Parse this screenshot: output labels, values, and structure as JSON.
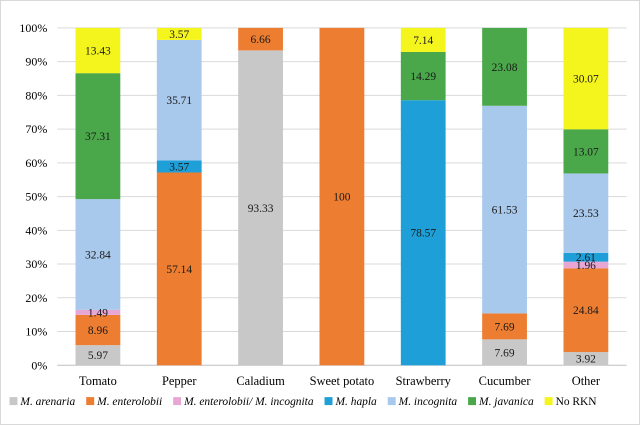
{
  "chart_data": {
    "type": "bar",
    "stacked": true,
    "percent": true,
    "title": "",
    "xlabel": "",
    "ylabel": "",
    "ylim": [
      0,
      100
    ],
    "y_ticks": [
      "0%",
      "10%",
      "20%",
      "30%",
      "40%",
      "50%",
      "60%",
      "70%",
      "80%",
      "90%",
      "100%"
    ],
    "categories": [
      "Tomato",
      "Pepper",
      "Caladium",
      "Sweet potato",
      "Strawberry",
      "Cucumber",
      "Other"
    ],
    "legend_position": "bottom",
    "grid": true,
    "series": [
      {
        "name": "M. arenaria",
        "color": "#c8c8c8",
        "values": [
          5.97,
          0,
          93.33,
          0,
          0,
          7.69,
          3.92
        ],
        "labels": [
          "5.97",
          "",
          "93.33",
          "",
          "",
          "7.69",
          "3.92"
        ]
      },
      {
        "name": "M. enterolobii",
        "color": "#ed7d31",
        "values": [
          8.96,
          57.14,
          6.66,
          100,
          0,
          7.69,
          24.84
        ],
        "labels": [
          "8.96",
          "57.14",
          "6.66",
          "100",
          "",
          "7.69",
          "24.84"
        ]
      },
      {
        "name": "M. enterolobii/ M. incognita",
        "color": "#e8a6d4",
        "values": [
          1.49,
          0,
          0,
          0,
          0,
          0,
          1.96
        ],
        "labels": [
          "1.49",
          "",
          "",
          "",
          "",
          "",
          "1.96"
        ]
      },
      {
        "name": "M. hapla",
        "color": "#1e9fd8",
        "values": [
          0,
          3.57,
          0,
          0,
          78.57,
          0,
          2.61
        ],
        "labels": [
          "",
          "3.57",
          "",
          "",
          "78.57",
          "",
          "2.61"
        ]
      },
      {
        "name": "M. incognita",
        "color": "#a9c9ec",
        "values": [
          32.84,
          35.71,
          0,
          0,
          0,
          61.53,
          23.53
        ],
        "labels": [
          "32.84",
          "35.71",
          "",
          "",
          "",
          "61.53",
          "23.53"
        ]
      },
      {
        "name": "M. javanica",
        "color": "#4aa84a",
        "values": [
          37.31,
          0,
          0,
          0,
          14.29,
          23.08,
          13.07
        ],
        "labels": [
          "37.31",
          "",
          "",
          "",
          "14.29",
          "23.08",
          "13.07"
        ]
      },
      {
        "name": "No RKN",
        "color": "#f5f51e",
        "values": [
          13.43,
          3.57,
          0,
          0,
          7.14,
          0,
          30.07
        ],
        "labels": [
          "13.43",
          "3.57",
          "",
          "",
          "7.14",
          "",
          "30.07"
        ]
      }
    ],
    "legend": [
      {
        "italic": "M. arenaria",
        "plain": ""
      },
      {
        "italic": "M. enterolobii",
        "plain": ""
      },
      {
        "italic": "M. enterolobii/ M. incognita",
        "plain": ""
      },
      {
        "italic": "M. hapla",
        "plain": ""
      },
      {
        "italic": "M. incognita",
        "plain": ""
      },
      {
        "italic": "M. javanica",
        "plain": ""
      },
      {
        "italic": "",
        "plain": "No RKN"
      }
    ]
  }
}
